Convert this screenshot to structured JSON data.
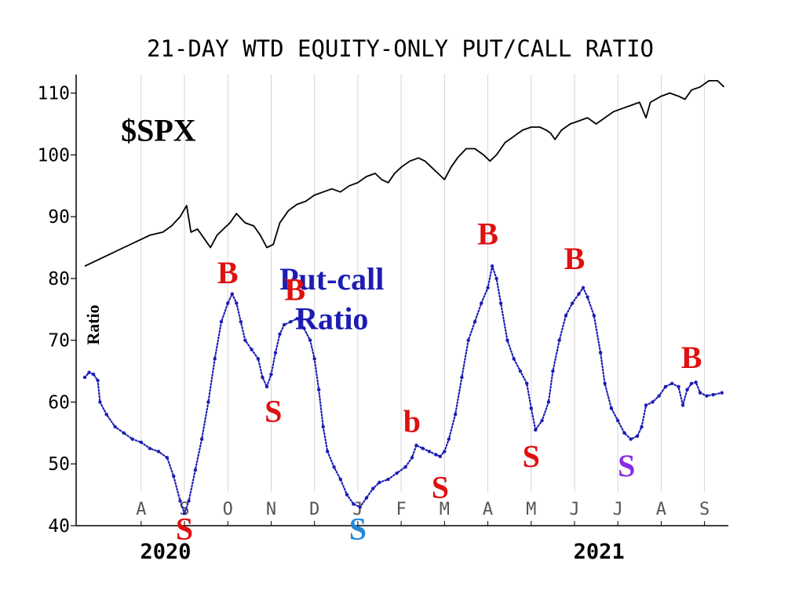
{
  "chart_data": {
    "type": "line",
    "title": "21-DAY WTD EQUITY-ONLY PUT/CALL RATIO",
    "ylabel": "Ratio",
    "ylim": [
      40,
      113
    ],
    "yticks": [
      40,
      50,
      60,
      70,
      80,
      90,
      100,
      110
    ],
    "ytick_labels": [
      "40",
      "50",
      "60",
      "70",
      "80",
      "90",
      "100",
      "110"
    ],
    "month_ticks": [
      {
        "label": "A",
        "x": 8.3
      },
      {
        "label": "S",
        "x": 9.3
      },
      {
        "label": "O",
        "x": 10.3
      },
      {
        "label": "N",
        "x": 11.3
      },
      {
        "label": "D",
        "x": 12.3
      },
      {
        "label": "J",
        "x": 13.3
      },
      {
        "label": "F",
        "x": 14.3
      },
      {
        "label": "M",
        "x": 15.3
      },
      {
        "label": "A",
        "x": 16.3
      },
      {
        "label": "M",
        "x": 17.3
      },
      {
        "label": "J",
        "x": 18.3
      },
      {
        "label": "J",
        "x": 19.3
      },
      {
        "label": "A",
        "x": 20.3
      },
      {
        "label": "S",
        "x": 21.3
      }
    ],
    "year_labels": [
      {
        "label": "2020",
        "x": 9.3
      },
      {
        "label": "2021",
        "x": 19.3
      }
    ],
    "grid": "vertical at month ticks",
    "series": [
      {
        "name": "$SPX",
        "style": "solid",
        "color": "#000000",
        "points": [
          [
            7.0,
            82
          ],
          [
            7.3,
            83
          ],
          [
            7.6,
            84
          ],
          [
            7.9,
            85
          ],
          [
            8.2,
            86
          ],
          [
            8.5,
            87
          ],
          [
            8.8,
            87.5
          ],
          [
            9.0,
            88.5
          ],
          [
            9.2,
            90
          ],
          [
            9.35,
            91.8
          ],
          [
            9.45,
            87.5
          ],
          [
            9.6,
            88
          ],
          [
            9.75,
            86.5
          ],
          [
            9.9,
            85
          ],
          [
            10.05,
            87
          ],
          [
            10.2,
            88
          ],
          [
            10.35,
            89
          ],
          [
            10.5,
            90.5
          ],
          [
            10.7,
            89
          ],
          [
            10.9,
            88.5
          ],
          [
            11.05,
            87
          ],
          [
            11.2,
            85
          ],
          [
            11.35,
            85.5
          ],
          [
            11.5,
            89
          ],
          [
            11.7,
            91
          ],
          [
            11.9,
            92
          ],
          [
            12.1,
            92.5
          ],
          [
            12.3,
            93.5
          ],
          [
            12.5,
            94
          ],
          [
            12.7,
            94.5
          ],
          [
            12.9,
            94
          ],
          [
            13.1,
            95
          ],
          [
            13.3,
            95.5
          ],
          [
            13.5,
            96.5
          ],
          [
            13.7,
            97
          ],
          [
            13.85,
            96
          ],
          [
            14.0,
            95.5
          ],
          [
            14.15,
            97
          ],
          [
            14.3,
            98
          ],
          [
            14.5,
            99
          ],
          [
            14.7,
            99.5
          ],
          [
            14.85,
            99
          ],
          [
            15.0,
            98
          ],
          [
            15.15,
            97
          ],
          [
            15.3,
            96
          ],
          [
            15.45,
            98
          ],
          [
            15.6,
            99.5
          ],
          [
            15.8,
            101
          ],
          [
            16.0,
            101
          ],
          [
            16.2,
            100
          ],
          [
            16.35,
            99
          ],
          [
            16.5,
            100
          ],
          [
            16.7,
            102
          ],
          [
            16.9,
            103
          ],
          [
            17.1,
            104
          ],
          [
            17.3,
            104.5
          ],
          [
            17.5,
            104.5
          ],
          [
            17.65,
            104
          ],
          [
            17.75,
            103.5
          ],
          [
            17.85,
            102.5
          ],
          [
            18.0,
            104
          ],
          [
            18.2,
            105
          ],
          [
            18.4,
            105.5
          ],
          [
            18.6,
            106
          ],
          [
            18.8,
            105
          ],
          [
            19.0,
            106
          ],
          [
            19.2,
            107
          ],
          [
            19.4,
            107.5
          ],
          [
            19.6,
            108
          ],
          [
            19.8,
            108.5
          ],
          [
            19.95,
            106
          ],
          [
            20.05,
            108.5
          ],
          [
            20.3,
            109.5
          ],
          [
            20.5,
            110
          ],
          [
            20.7,
            109.5
          ],
          [
            20.85,
            109
          ],
          [
            21.0,
            110.5
          ],
          [
            21.2,
            111
          ],
          [
            21.4,
            112
          ],
          [
            21.6,
            112
          ],
          [
            21.75,
            111
          ]
        ]
      },
      {
        "name": "Put-call Ratio",
        "style": "dotted",
        "color": "#1c1cb4",
        "points": [
          [
            7.0,
            64
          ],
          [
            7.1,
            64.8
          ],
          [
            7.2,
            64.5
          ],
          [
            7.3,
            63.5
          ],
          [
            7.35,
            60
          ],
          [
            7.5,
            58
          ],
          [
            7.7,
            56
          ],
          [
            7.9,
            55
          ],
          [
            8.1,
            54
          ],
          [
            8.3,
            53.5
          ],
          [
            8.5,
            52.5
          ],
          [
            8.7,
            52
          ],
          [
            8.9,
            51
          ],
          [
            9.05,
            48
          ],
          [
            9.2,
            44
          ],
          [
            9.3,
            42
          ],
          [
            9.4,
            44
          ],
          [
            9.55,
            49
          ],
          [
            9.7,
            54
          ],
          [
            9.85,
            60
          ],
          [
            10.0,
            67
          ],
          [
            10.15,
            73
          ],
          [
            10.3,
            76
          ],
          [
            10.4,
            77.5
          ],
          [
            10.5,
            76
          ],
          [
            10.6,
            73
          ],
          [
            10.7,
            70
          ],
          [
            10.85,
            68.5
          ],
          [
            11.0,
            67
          ],
          [
            11.1,
            64
          ],
          [
            11.2,
            62.5
          ],
          [
            11.3,
            64.5
          ],
          [
            11.4,
            68
          ],
          [
            11.5,
            71
          ],
          [
            11.6,
            72.5
          ],
          [
            11.75,
            73
          ],
          [
            11.9,
            73.5
          ],
          [
            12.05,
            72
          ],
          [
            12.2,
            70
          ],
          [
            12.3,
            67
          ],
          [
            12.4,
            62
          ],
          [
            12.5,
            56
          ],
          [
            12.6,
            52
          ],
          [
            12.75,
            49.5
          ],
          [
            12.9,
            47.5
          ],
          [
            13.05,
            45
          ],
          [
            13.2,
            43.5
          ],
          [
            13.35,
            43
          ],
          [
            13.5,
            44.5
          ],
          [
            13.65,
            46
          ],
          [
            13.8,
            47
          ],
          [
            14.0,
            47.5
          ],
          [
            14.2,
            48.5
          ],
          [
            14.4,
            49.5
          ],
          [
            14.55,
            51
          ],
          [
            14.65,
            53
          ],
          [
            14.8,
            52.5
          ],
          [
            14.95,
            52
          ],
          [
            15.1,
            51.5
          ],
          [
            15.2,
            51.2
          ],
          [
            15.3,
            52
          ],
          [
            15.4,
            54
          ],
          [
            15.55,
            58
          ],
          [
            15.7,
            64
          ],
          [
            15.85,
            70
          ],
          [
            16.0,
            73
          ],
          [
            16.15,
            76
          ],
          [
            16.3,
            78.5
          ],
          [
            16.4,
            82
          ],
          [
            16.5,
            80
          ],
          [
            16.6,
            76
          ],
          [
            16.75,
            70
          ],
          [
            16.9,
            67
          ],
          [
            17.05,
            65
          ],
          [
            17.2,
            63
          ],
          [
            17.3,
            59
          ],
          [
            17.4,
            55.5
          ],
          [
            17.55,
            57
          ],
          [
            17.7,
            60
          ],
          [
            17.8,
            65
          ],
          [
            17.95,
            70
          ],
          [
            18.1,
            74
          ],
          [
            18.25,
            76
          ],
          [
            18.4,
            77.5
          ],
          [
            18.5,
            78.5
          ],
          [
            18.6,
            77
          ],
          [
            18.75,
            74
          ],
          [
            18.9,
            68
          ],
          [
            19.0,
            63
          ],
          [
            19.15,
            59
          ],
          [
            19.3,
            57
          ],
          [
            19.45,
            55
          ],
          [
            19.6,
            54
          ],
          [
            19.75,
            54.5
          ],
          [
            19.85,
            56
          ],
          [
            19.95,
            59.5
          ],
          [
            20.1,
            60
          ],
          [
            20.25,
            61
          ],
          [
            20.4,
            62.5
          ],
          [
            20.55,
            63
          ],
          [
            20.7,
            62.5
          ],
          [
            20.8,
            59.5
          ],
          [
            20.9,
            62
          ],
          [
            21.0,
            63
          ],
          [
            21.1,
            63.2
          ],
          [
            21.2,
            61.5
          ],
          [
            21.35,
            61
          ],
          [
            21.5,
            61.2
          ],
          [
            21.7,
            61.5
          ]
        ]
      }
    ],
    "annotations": [
      {
        "text": "$SPX",
        "x": 8.7,
        "y": 102.3,
        "color": "#000000",
        "size": "large"
      },
      {
        "text": "Put-call",
        "x": 12.7,
        "y": 78.2,
        "color": "#1c1cb4",
        "size": "large"
      },
      {
        "text": "Ratio",
        "x": 12.7,
        "y": 71.8,
        "color": "#1c1cb4",
        "size": "large"
      },
      {
        "text": "B",
        "x": 10.3,
        "y": 79.2,
        "color": "#e01010",
        "size": "large"
      },
      {
        "text": "B",
        "x": 11.85,
        "y": 76.5,
        "color": "#e01010",
        "size": "large"
      },
      {
        "text": "B",
        "x": 16.3,
        "y": 85.5,
        "color": "#e01010",
        "size": "large"
      },
      {
        "text": "B",
        "x": 18.3,
        "y": 81.5,
        "color": "#e01010",
        "size": "large"
      },
      {
        "text": "B",
        "x": 21.0,
        "y": 65.5,
        "color": "#e01010",
        "size": "large"
      },
      {
        "text": "b",
        "x": 14.55,
        "y": 55.2,
        "color": "#e01010",
        "size": "large"
      },
      {
        "text": "S",
        "x": 9.3,
        "y": 37.8,
        "color": "#e01010",
        "size": "large"
      },
      {
        "text": "S",
        "x": 11.35,
        "y": 56.8,
        "color": "#e01010",
        "size": "large"
      },
      {
        "text": "S",
        "x": 13.3,
        "y": 37.8,
        "color": "#2488d8",
        "size": "large"
      },
      {
        "text": "S",
        "x": 15.2,
        "y": 44.5,
        "color": "#e01010",
        "size": "large"
      },
      {
        "text": "S",
        "x": 17.3,
        "y": 49.5,
        "color": "#e01010",
        "size": "large"
      },
      {
        "text": "S",
        "x": 19.5,
        "y": 48.0,
        "color": "#8a2be2",
        "size": "large"
      }
    ]
  }
}
